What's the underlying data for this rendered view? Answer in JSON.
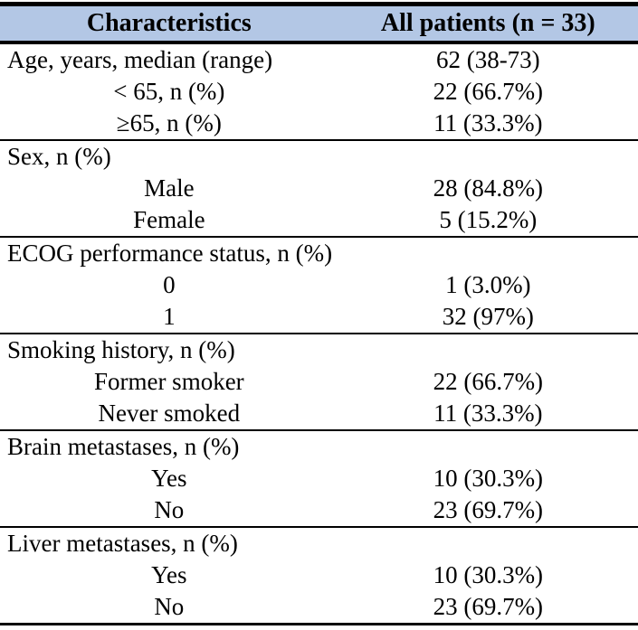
{
  "colors": {
    "header_bg": "#b3c7e5",
    "border": "#000000",
    "text": "#000000",
    "page_bg": "#ffffff"
  },
  "table": {
    "columns": [
      {
        "label": "Characteristics"
      },
      {
        "label": "All patients (n = 33)"
      }
    ],
    "sections": [
      {
        "rows": [
          {
            "label": "Age, years, median (range)",
            "value": "62 (38-73)",
            "indent": false
          },
          {
            "label": "< 65, n (%)",
            "value": "22 (66.7%)",
            "indent": true
          },
          {
            "label": "≥65, n (%)",
            "value": "11 (33.3%)",
            "indent": true
          }
        ]
      },
      {
        "rows": [
          {
            "label": "Sex, n (%)",
            "value": "",
            "indent": false
          },
          {
            "label": "Male",
            "value": "28 (84.8%)",
            "indent": true
          },
          {
            "label": "Female",
            "value": "5 (15.2%)",
            "indent": true
          }
        ]
      },
      {
        "rows": [
          {
            "label": "ECOG performance status, n (%)",
            "value": "",
            "indent": false
          },
          {
            "label": "0",
            "value": "1 (3.0%)",
            "indent": true
          },
          {
            "label": "1",
            "value": "32 (97%)",
            "indent": true
          }
        ]
      },
      {
        "rows": [
          {
            "label": "Smoking history, n (%)",
            "value": "",
            "indent": false
          },
          {
            "label": "Former smoker",
            "value": "22 (66.7%)",
            "indent": true
          },
          {
            "label": "Never smoked",
            "value": "11 (33.3%)",
            "indent": true
          }
        ]
      },
      {
        "rows": [
          {
            "label": "Brain metastases, n (%)",
            "value": "",
            "indent": false
          },
          {
            "label": "Yes",
            "value": "10 (30.3%)",
            "indent": true
          },
          {
            "label": "No",
            "value": "23 (69.7%)",
            "indent": true
          }
        ]
      },
      {
        "rows": [
          {
            "label": "Liver metastases, n (%)",
            "value": "",
            "indent": false
          },
          {
            "label": "Yes",
            "value": "10 (30.3%)",
            "indent": true
          },
          {
            "label": "No",
            "value": "23 (69.7%)",
            "indent": true
          }
        ]
      }
    ]
  }
}
